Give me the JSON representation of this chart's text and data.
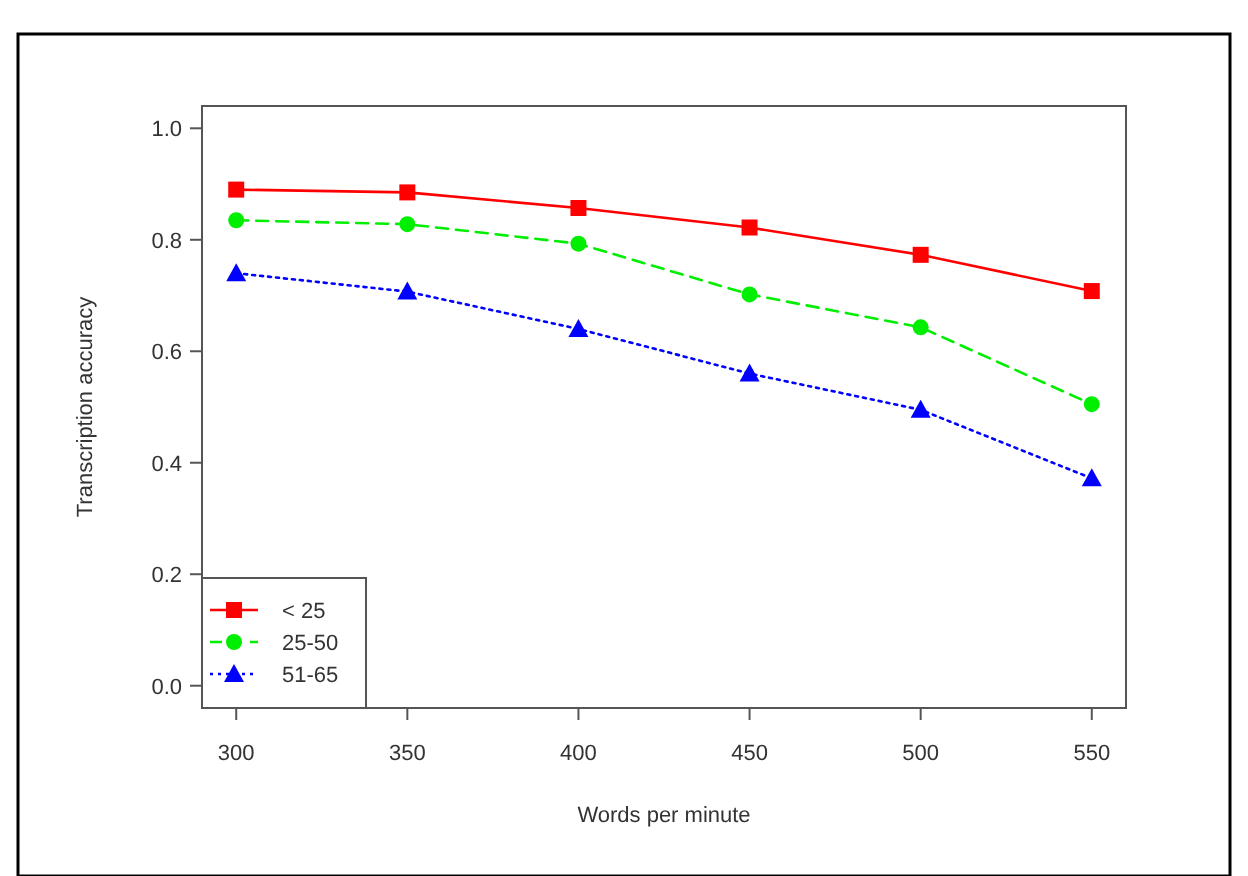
{
  "chart_data": {
    "type": "line",
    "xlabel": "Words per minute",
    "ylabel": "Transcription accuracy",
    "x": [
      300,
      350,
      400,
      450,
      500,
      550
    ],
    "series": [
      {
        "name": "< 25",
        "color": "#ff0000",
        "values": [
          0.89,
          0.885,
          0.857,
          0.822,
          0.773,
          0.708
        ],
        "marker": "square",
        "line_style": "solid"
      },
      {
        "name": "25-50",
        "color": "#00ee00",
        "values": [
          0.835,
          0.828,
          0.793,
          0.702,
          0.643,
          0.505
        ],
        "marker": "circle",
        "line_style": "dashed"
      },
      {
        "name": "51-65",
        "color": "#0000ff",
        "values": [
          0.74,
          0.707,
          0.64,
          0.56,
          0.495,
          0.372
        ],
        "marker": "triangle",
        "line_style": "dotted"
      }
    ],
    "xlim": [
      290,
      560
    ],
    "ylim": [
      -0.04,
      1.04
    ],
    "xticks": [
      300,
      350,
      400,
      450,
      500,
      550
    ],
    "yticks": [
      {
        "value": 0,
        "label": "0.0"
      },
      0.2,
      0.4,
      0.6,
      0.8,
      {
        "value": 1,
        "label": "1.0"
      }
    ],
    "grid": false,
    "legend": "bottom left"
  }
}
